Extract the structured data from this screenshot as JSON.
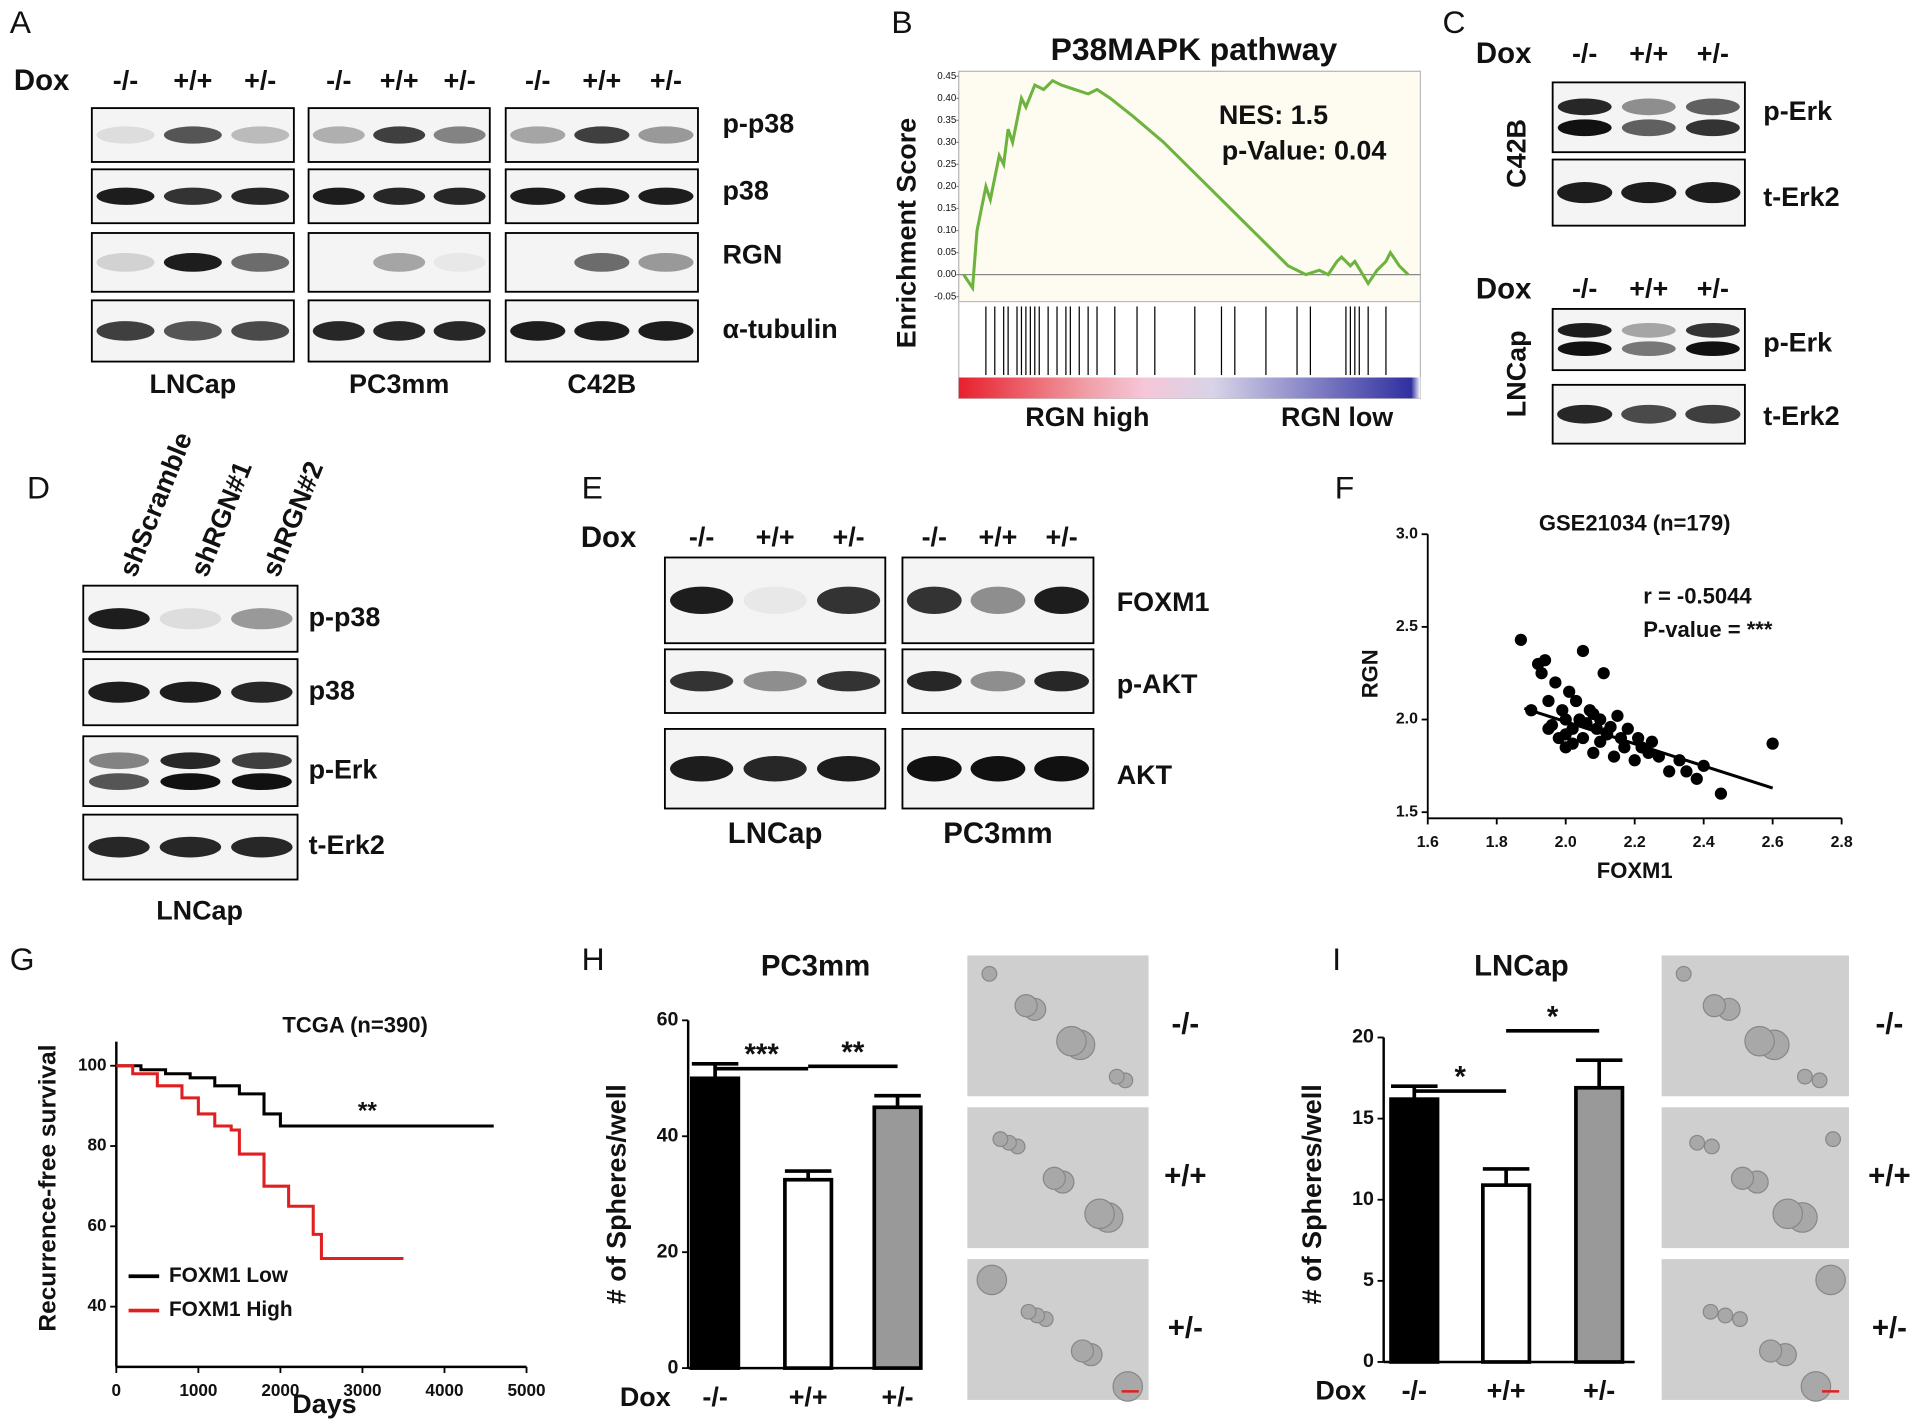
{
  "blots": [
    {
      "panel": "A",
      "dox": "Dox",
      "conditions": [
        "-/-",
        "+/+",
        "+/-"
      ],
      "rows": [
        "p-p38",
        "p38",
        "RGN",
        "α-tubulin"
      ],
      "cells": [
        "LNCap",
        "PC3mm",
        "C42B"
      ]
    },
    {
      "panel": "C",
      "dox": "Dox",
      "conditions": [
        "-/-",
        "+/+",
        "+/-"
      ],
      "rows": [
        "p-Erk",
        "t-Erk2"
      ],
      "cells": [
        "C42B",
        "LNCap"
      ]
    },
    {
      "panel": "D",
      "conditions": [
        "shScramble",
        "shRGN#1",
        "shRGN#2"
      ],
      "rows": [
        "p-p38",
        "p38",
        "p-Erk",
        "t-Erk2"
      ],
      "cells": [
        "LNCap"
      ]
    },
    {
      "panel": "E",
      "dox": "Dox",
      "conditions": [
        "-/-",
        "+/+",
        "+/-"
      ],
      "rows": [
        "FOXM1",
        "p-AKT",
        "AKT"
      ],
      "cells": [
        "LNCap",
        "PC3mm"
      ]
    }
  ],
  "chart_data": [
    {
      "panel": "B",
      "type": "line",
      "title": "P38MAPK pathway",
      "y_label": "Enrichment Score",
      "annotations": [
        "NES: 1.5",
        "p-Value: 0.04"
      ],
      "x_groups": [
        "RGN high",
        "RGN low"
      ],
      "x": [
        0,
        2,
        3,
        5,
        6,
        8,
        9,
        10,
        11,
        13,
        14,
        16,
        18,
        20,
        22,
        25,
        28,
        30,
        33,
        38,
        45,
        50,
        55,
        60,
        65,
        70,
        73,
        77,
        80,
        82,
        84,
        85,
        87,
        88,
        91,
        93,
        95,
        96,
        98,
        100
      ],
      "series": [
        {
          "color": "#6db33f",
          "values": [
            0,
            -0.03,
            0.1,
            0.2,
            0.17,
            0.27,
            0.25,
            0.33,
            0.3,
            0.4,
            0.38,
            0.43,
            0.42,
            0.44,
            0.43,
            0.42,
            0.41,
            0.42,
            0.4,
            0.36,
            0.3,
            0.25,
            0.2,
            0.15,
            0.1,
            0.05,
            0.02,
            0,
            0.01,
            0,
            0.03,
            0.04,
            0.02,
            0.03,
            -0.02,
            0.01,
            0.03,
            0.05,
            0.02,
            0
          ]
        }
      ],
      "hits": [
        5,
        7,
        9,
        10,
        12,
        13,
        14,
        15,
        16,
        17,
        19,
        21,
        23,
        24,
        26,
        28,
        30,
        34,
        39,
        43,
        52,
        58,
        61,
        68,
        75,
        78,
        86,
        87,
        88,
        89,
        91,
        95
      ],
      "xlim": [
        0,
        100
      ],
      "ylim": [
        -0.05,
        0.45
      ],
      "yticks": [
        -0.05,
        {
          "value": 0,
          "label": "0.00"
        },
        0.05,
        {
          "value": 0.1,
          "label": "0.10"
        },
        0.15,
        {
          "value": 0.2,
          "label": "0.20"
        },
        0.25,
        {
          "value": 0.3,
          "label": "0.30"
        },
        0.35,
        {
          "value": 0.4,
          "label": "0.40"
        },
        0.45
      ]
    },
    {
      "panel": "F",
      "type": "scatter",
      "title": "GSE21034 (n=179)",
      "x_label": "FOXM1",
      "y_label": "RGN",
      "annotations": [
        "r = -0.5044",
        "P-value = ***"
      ],
      "color": "#000000",
      "x": [
        1.87,
        1.9,
        1.92,
        1.93,
        1.95,
        1.95,
        1.97,
        1.98,
        1.99,
        2.0,
        2.0,
        2.01,
        2.02,
        2.03,
        2.04,
        2.05,
        2.05,
        2.06,
        2.07,
        2.08,
        2.09,
        2.1,
        2.1,
        2.11,
        2.12,
        2.13,
        2.14,
        2.15,
        2.16,
        2.17,
        2.18,
        2.2,
        2.21,
        2.22,
        2.24,
        2.25,
        2.27,
        2.3,
        2.33,
        2.35,
        2.38,
        2.4,
        2.45,
        2.6,
        1.94,
        1.96,
        2.0,
        2.08,
        2.12,
        2.02
      ],
      "values": [
        2.43,
        2.05,
        2.3,
        2.25,
        2.1,
        1.95,
        2.2,
        1.9,
        2.05,
        2.0,
        1.85,
        2.15,
        1.95,
        2.1,
        2.0,
        1.9,
        2.37,
        1.98,
        2.05,
        1.82,
        1.95,
        2.0,
        1.88,
        2.25,
        1.92,
        1.96,
        1.8,
        2.02,
        1.9,
        1.85,
        1.95,
        1.78,
        1.9,
        1.85,
        1.82,
        1.88,
        1.8,
        1.72,
        1.78,
        1.72,
        1.68,
        1.75,
        1.6,
        1.87,
        2.32,
        1.97,
        1.92,
        2.03,
        1.93,
        1.87
      ],
      "fit": {
        "x": [
          1.88,
          2.6
        ],
        "values": [
          2.06,
          1.63
        ]
      },
      "xlim": [
        1.6,
        2.8
      ],
      "xticks": [
        1.6,
        1.8,
        {
          "value": 2,
          "label": "2.0"
        },
        2.2,
        2.4,
        2.6,
        2.8
      ],
      "ylim": [
        1.5,
        3.0
      ],
      "yticks": [
        1.5,
        {
          "value": 2,
          "label": "2.0"
        },
        2.5,
        {
          "value": 3,
          "label": "3.0"
        }
      ]
    },
    {
      "panel": "G",
      "type": "line",
      "step": true,
      "title": "TCGA (n=390)",
      "x_label": "Days",
      "y_label": "Recurrence-free survival",
      "annotations": [
        "**"
      ],
      "series": [
        {
          "name": "FOXM1 Low",
          "color": "#000000",
          "x": [
            0,
            300,
            600,
            900,
            1200,
            1500,
            1800,
            2000,
            2500,
            3000,
            4600
          ],
          "values": [
            100,
            99,
            98,
            97,
            95,
            93,
            88,
            85,
            85,
            85,
            85
          ]
        },
        {
          "name": "FOXM1 High",
          "color": "#e02020",
          "x": [
            0,
            200,
            500,
            800,
            1000,
            1200,
            1400,
            1500,
            1800,
            2000,
            2100,
            2400,
            2500,
            3500
          ],
          "values": [
            100,
            98,
            95,
            92,
            88,
            85,
            84,
            78,
            70,
            70,
            65,
            58,
            52,
            52
          ]
        }
      ],
      "xlim": [
        0,
        5000
      ],
      "xticks": [
        0,
        1000,
        2000,
        3000,
        4000,
        5000
      ],
      "ylim": [
        25,
        106
      ],
      "yticks": [
        40,
        60,
        80,
        100
      ]
    },
    {
      "panel": "H",
      "type": "bar",
      "title": "PC3mm",
      "y_label": "# of Spheres/well",
      "x_label": "Dox",
      "categories": [
        "-/-",
        "+/+",
        "+/-"
      ],
      "values": [
        50,
        32.5,
        45
      ],
      "errors": [
        2.5,
        1.5,
        2
      ],
      "colors": [
        "#000000",
        "#ffffff",
        "#999999"
      ],
      "significance": [
        {
          "label": "***",
          "pair": [
            0,
            1
          ]
        },
        {
          "label": "**",
          "pair": [
            1,
            2
          ]
        }
      ],
      "ylim": [
        0,
        60
      ],
      "yticks": [
        0,
        20,
        40,
        60
      ]
    },
    {
      "panel": "I",
      "type": "bar",
      "title": "LNCap",
      "y_label": "# of Spheres/well",
      "x_label": "Dox",
      "categories": [
        "-/-",
        "+/+",
        "+/-"
      ],
      "values": [
        16.2,
        10.9,
        16.9
      ],
      "errors": [
        0.8,
        1,
        1.7
      ],
      "colors": [
        "#000000",
        "#ffffff",
        "#999999"
      ],
      "significance": [
        {
          "label": "*",
          "pair": [
            0,
            1
          ]
        },
        {
          "label": "*",
          "pair": [
            1,
            2
          ]
        }
      ],
      "ylim": [
        0,
        20
      ],
      "yticks": [
        0,
        5,
        10,
        15,
        20
      ]
    }
  ]
}
